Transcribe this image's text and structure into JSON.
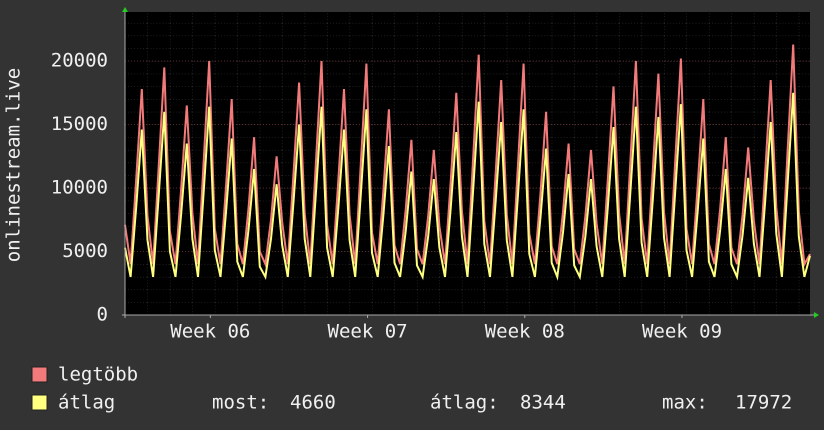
{
  "chart_data": {
    "type": "line",
    "y_label": "onlinestream.live",
    "xlim": [
      0,
      30.5
    ],
    "xticks": [
      {
        "value": 3.8,
        "label": "Week 06"
      },
      {
        "value": 10.8,
        "label": "Week 07"
      },
      {
        "value": 17.8,
        "label": "Week 08"
      },
      {
        "value": 24.8,
        "label": "Week 09"
      }
    ],
    "ylim": [
      0,
      23860
    ],
    "yticks": [
      0,
      5000,
      10000,
      15000,
      20000
    ],
    "grid": true,
    "x": [
      0,
      0.25,
      0.5,
      0.75,
      1,
      1.25,
      1.5,
      1.75,
      2,
      2.25,
      2.5,
      2.75,
      3,
      3.25,
      3.5,
      3.75,
      4,
      4.25,
      4.5,
      4.75,
      5,
      5.25,
      5.5,
      5.75,
      6,
      6.25,
      6.5,
      6.75,
      7,
      7.25,
      7.5,
      7.75,
      8,
      8.25,
      8.5,
      8.75,
      9,
      9.25,
      9.5,
      9.75,
      10,
      10.25,
      10.5,
      10.75,
      11,
      11.25,
      11.5,
      11.75,
      12,
      12.25,
      12.5,
      12.75,
      13,
      13.25,
      13.5,
      13.75,
      14,
      14.25,
      14.5,
      14.75,
      15,
      15.25,
      15.5,
      15.75,
      16,
      16.25,
      16.5,
      16.75,
      17,
      17.25,
      17.5,
      17.75,
      18,
      18.25,
      18.5,
      18.75,
      19,
      19.25,
      19.5,
      19.75,
      20,
      20.25,
      20.5,
      20.75,
      21,
      21.25,
      21.5,
      21.75,
      22,
      22.25,
      22.5,
      22.75,
      23,
      23.25,
      23.5,
      23.75,
      24,
      24.25,
      24.5,
      24.75,
      25,
      25.25,
      25.5,
      25.75,
      26,
      26.25,
      26.5,
      26.75,
      27,
      27.25,
      27.5,
      27.75,
      28,
      28.25,
      28.5,
      28.75,
      29,
      29.25,
      29.5,
      29.75,
      30,
      30.25,
      30.5
    ],
    "series": [
      {
        "name": "legtöbb",
        "color": "#f27a7a",
        "values": [
          7100,
          4000,
          10700,
          17800,
          7800,
          4000,
          11700,
          19500,
          6600,
          4000,
          9900,
          16500,
          8000,
          4000,
          12000,
          20000,
          6800,
          4000,
          10200,
          17000,
          5600,
          4000,
          8400,
          14000,
          5000,
          4000,
          7500,
          12500,
          7300,
          4000,
          11000,
          18300,
          8000,
          4000,
          12000,
          20000,
          7100,
          4000,
          10700,
          17800,
          7900,
          4000,
          11900,
          19800,
          6500,
          4000,
          9700,
          16200,
          5500,
          4000,
          8300,
          13800,
          5200,
          4000,
          7800,
          13000,
          7000,
          4000,
          10500,
          17500,
          8200,
          4000,
          12300,
          20500,
          7400,
          4000,
          11100,
          18500,
          7900,
          4000,
          11900,
          19800,
          6400,
          4000,
          9600,
          16000,
          5400,
          4000,
          8100,
          13500,
          5200,
          4000,
          7800,
          13000,
          7200,
          4000,
          10800,
          18000,
          8000,
          4000,
          12000,
          20000,
          7600,
          4000,
          11400,
          19000,
          8100,
          4000,
          12100,
          20200,
          6800,
          4000,
          10200,
          17000,
          5600,
          4000,
          8400,
          14000,
          5300,
          4000,
          7900,
          13200,
          7400,
          4000,
          11100,
          18500,
          8500,
          4000,
          12800,
          21300,
          8200,
          4000,
          4800
        ]
      },
      {
        "name": "átlag",
        "color": "#ffff80",
        "values": [
          5300,
          3000,
          8500,
          14600,
          5900,
          3000,
          9400,
          16000,
          5000,
          3000,
          7900,
          13500,
          6000,
          3000,
          9600,
          16400,
          5100,
          3000,
          8200,
          13900,
          4200,
          3000,
          6700,
          11500,
          3800,
          3000,
          6000,
          10300,
          5500,
          3000,
          8800,
          15000,
          6000,
          3000,
          9600,
          16400,
          5300,
          3000,
          8500,
          14600,
          5900,
          3000,
          9500,
          16200,
          4900,
          3000,
          7800,
          13300,
          4100,
          3000,
          6600,
          11300,
          3900,
          3000,
          6200,
          10700,
          5300,
          3000,
          8400,
          14400,
          6200,
          3000,
          9800,
          16800,
          5600,
          3000,
          8900,
          15200,
          5900,
          3000,
          9500,
          16200,
          4800,
          3000,
          7700,
          13100,
          4100,
          3000,
          6500,
          11100,
          3900,
          3000,
          6200,
          10700,
          5400,
          3000,
          8600,
          14800,
          6000,
          3000,
          9600,
          16400,
          5700,
          3000,
          9100,
          15600,
          6100,
          3000,
          9700,
          16600,
          5100,
          3000,
          8200,
          13900,
          4200,
          3000,
          6700,
          11500,
          4000,
          3000,
          6300,
          10800,
          5600,
          3000,
          8900,
          15200,
          6400,
          3000,
          10200,
          17500,
          6200,
          3000,
          4660
        ]
      }
    ],
    "stats": [
      {
        "label": "most:",
        "value": 4660
      },
      {
        "label": "átlag:",
        "value": 8344
      },
      {
        "label": "max:",
        "value": 17972
      }
    ]
  }
}
